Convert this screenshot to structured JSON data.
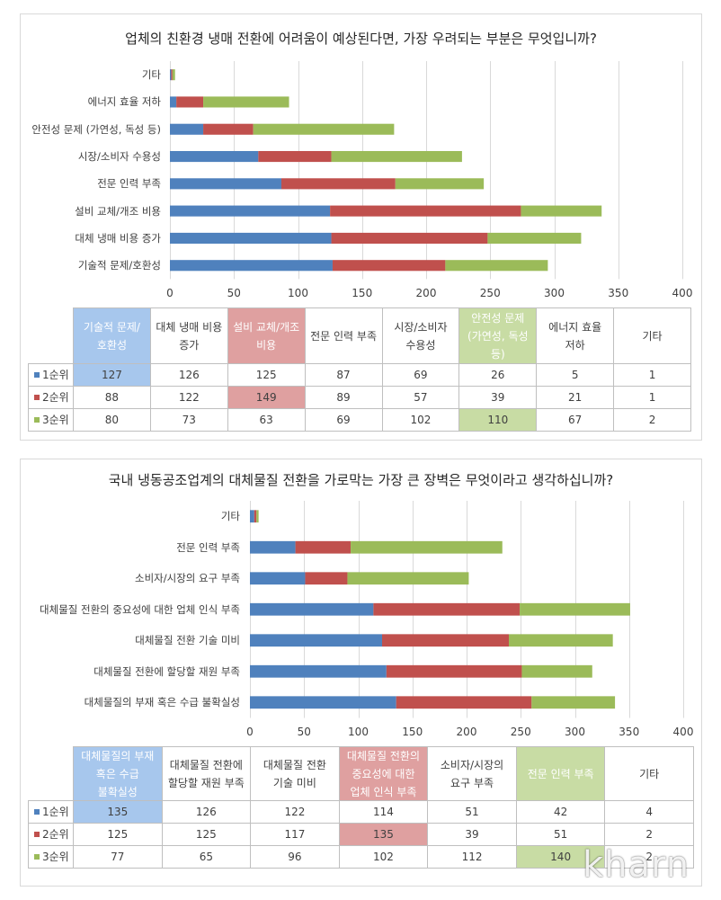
{
  "colors": {
    "series": [
      "#4F81BD",
      "#C0504D",
      "#9BBB59"
    ],
    "highlight": [
      "#A7C7ED",
      "#DFA0A0",
      "#C8DCA4"
    ]
  },
  "watermark": "kharn",
  "chart_data": [
    {
      "type": "bar",
      "orientation": "horizontal",
      "stacked": true,
      "title": "업체의 친환경 냉매 전환에 어려움이 예상된다면, 가장 우려되는 부분은 무엇입니까?",
      "categories": [
        "기술적 문제/호환성",
        "대체 냉매 비용 증가",
        "설비 교체/개조 비용",
        "전문 인력 부족",
        "시장/소비자 수용성",
        "안전성 문제 (가연성, 독성 등)",
        "에너지 효율 저하",
        "기타"
      ],
      "series": [
        {
          "name": "1순위",
          "values": [
            127,
            126,
            125,
            87,
            69,
            26,
            5,
            1
          ]
        },
        {
          "name": "2순위",
          "values": [
            88,
            122,
            149,
            89,
            57,
            39,
            21,
            1
          ]
        },
        {
          "name": "3순위",
          "values": [
            80,
            73,
            63,
            69,
            102,
            110,
            67,
            2
          ]
        }
      ],
      "xlim": [
        0,
        400
      ],
      "xticks": [
        0,
        50,
        100,
        150,
        200,
        250,
        300,
        350,
        400
      ],
      "grid": true,
      "highlighted_cells": [
        {
          "series": 0,
          "category": 0
        },
        {
          "series": 1,
          "category": 2
        },
        {
          "series": 2,
          "category": 5
        }
      ]
    },
    {
      "type": "bar",
      "orientation": "horizontal",
      "stacked": true,
      "title": "국내 냉동공조업계의 대체물질 전환을 가로막는 가장 큰 장벽은 무엇이라고 생각하십니까?",
      "categories": [
        "대체물질의 부재 혹은 수급 불확실성",
        "대체물질 전환에 할당할 재원 부족",
        "대체물질 전환 기술 미비",
        "대체물질 전환의 중요성에 대한 업체 인식 부족",
        "소비자/시장의 요구 부족",
        "전문 인력 부족",
        "기타"
      ],
      "series": [
        {
          "name": "1순위",
          "values": [
            135,
            126,
            122,
            114,
            51,
            42,
            4
          ]
        },
        {
          "name": "2순위",
          "values": [
            125,
            125,
            117,
            135,
            39,
            51,
            2
          ]
        },
        {
          "name": "3순위",
          "values": [
            77,
            65,
            96,
            102,
            112,
            140,
            2
          ]
        }
      ],
      "xlim": [
        0,
        400
      ],
      "xticks": [
        0,
        50,
        100,
        150,
        200,
        250,
        300,
        350,
        400
      ],
      "grid": true,
      "highlighted_cells": [
        {
          "series": 0,
          "category": 0
        },
        {
          "series": 1,
          "category": 3
        },
        {
          "series": 2,
          "category": 5
        }
      ]
    }
  ]
}
